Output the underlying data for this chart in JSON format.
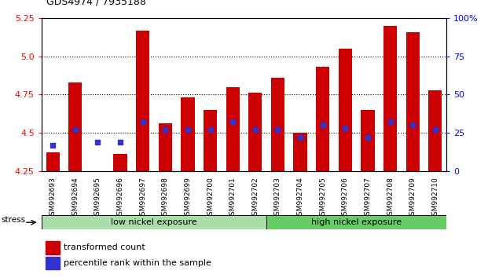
{
  "title": "GDS4974 / 7935188",
  "samples": [
    "GSM992693",
    "GSM992694",
    "GSM992695",
    "GSM992696",
    "GSM992697",
    "GSM992698",
    "GSM992699",
    "GSM992700",
    "GSM992701",
    "GSM992702",
    "GSM992703",
    "GSM992704",
    "GSM992705",
    "GSM992706",
    "GSM992707",
    "GSM992708",
    "GSM992709",
    "GSM992710"
  ],
  "transformed_counts": [
    4.37,
    4.83,
    4.25,
    4.36,
    5.17,
    4.56,
    4.73,
    4.65,
    4.8,
    4.76,
    4.86,
    4.5,
    4.93,
    5.05,
    4.65,
    5.2,
    5.16,
    4.78
  ],
  "percentile_ranks": [
    17,
    27,
    19,
    19,
    32,
    27,
    27,
    27,
    32,
    27,
    27,
    22,
    30,
    28,
    22,
    32,
    30,
    27
  ],
  "y_min": 4.25,
  "y_max": 5.25,
  "y_ticks": [
    4.25,
    4.5,
    4.75,
    5.0,
    5.25
  ],
  "y2_ticks": [
    0,
    25,
    50,
    75,
    100
  ],
  "bar_color": "#cc0000",
  "dot_color": "#3333cc",
  "background_color": "#ffffff",
  "low_nickel_label": "low nickel exposure",
  "high_nickel_label": "high nickel exposure",
  "low_nickel_color": "#aaddaa",
  "high_nickel_color": "#66cc66",
  "low_nickel_count": 10,
  "high_nickel_count": 8,
  "stress_label": "stress",
  "legend_red": "transformed count",
  "legend_blue": "percentile rank within the sample",
  "base_value": 4.25
}
